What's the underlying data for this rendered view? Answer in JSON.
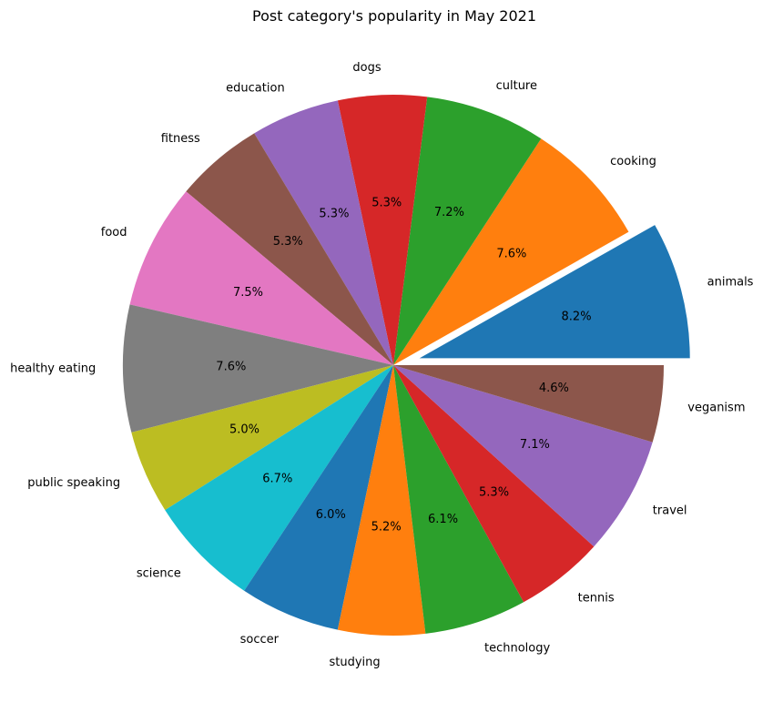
{
  "chart_data": {
    "type": "pie",
    "title": "Post category's popularity in May 2021",
    "start_angle_deg": 0,
    "direction": "counterclockwise",
    "exploded": [
      "animals"
    ],
    "slices": [
      {
        "label": "animals",
        "value": 8.2,
        "pct_label": "8.2%",
        "color": "#1f77b4"
      },
      {
        "label": "cooking",
        "value": 7.6,
        "pct_label": "7.6%",
        "color": "#ff7f0e"
      },
      {
        "label": "culture",
        "value": 7.2,
        "pct_label": "7.2%",
        "color": "#2ca02c"
      },
      {
        "label": "dogs",
        "value": 5.3,
        "pct_label": "5.3%",
        "color": "#d62728"
      },
      {
        "label": "education",
        "value": 5.3,
        "pct_label": "5.3%",
        "color": "#9467bd"
      },
      {
        "label": "fitness",
        "value": 5.3,
        "pct_label": "5.3%",
        "color": "#8c564b"
      },
      {
        "label": "food",
        "value": 7.5,
        "pct_label": "7.5%",
        "color": "#e377c2"
      },
      {
        "label": "healthy eating",
        "value": 7.6,
        "pct_label": "7.6%",
        "color": "#7f7f7f"
      },
      {
        "label": "public speaking",
        "value": 5.0,
        "pct_label": "5.0%",
        "color": "#bcbd22"
      },
      {
        "label": "science",
        "value": 6.7,
        "pct_label": "6.7%",
        "color": "#17becf"
      },
      {
        "label": "soccer",
        "value": 6.0,
        "pct_label": "6.0%",
        "color": "#1f77b4"
      },
      {
        "label": "studying",
        "value": 5.2,
        "pct_label": "5.2%",
        "color": "#ff7f0e"
      },
      {
        "label": "technology",
        "value": 6.1,
        "pct_label": "6.1%",
        "color": "#2ca02c"
      },
      {
        "label": "tennis",
        "value": 5.3,
        "pct_label": "5.3%",
        "color": "#d62728"
      },
      {
        "label": "travel",
        "value": 7.1,
        "pct_label": "7.1%",
        "color": "#9467bd"
      },
      {
        "label": "veganism",
        "value": 4.6,
        "pct_label": "4.6%",
        "color": "#8c564b"
      }
    ]
  }
}
